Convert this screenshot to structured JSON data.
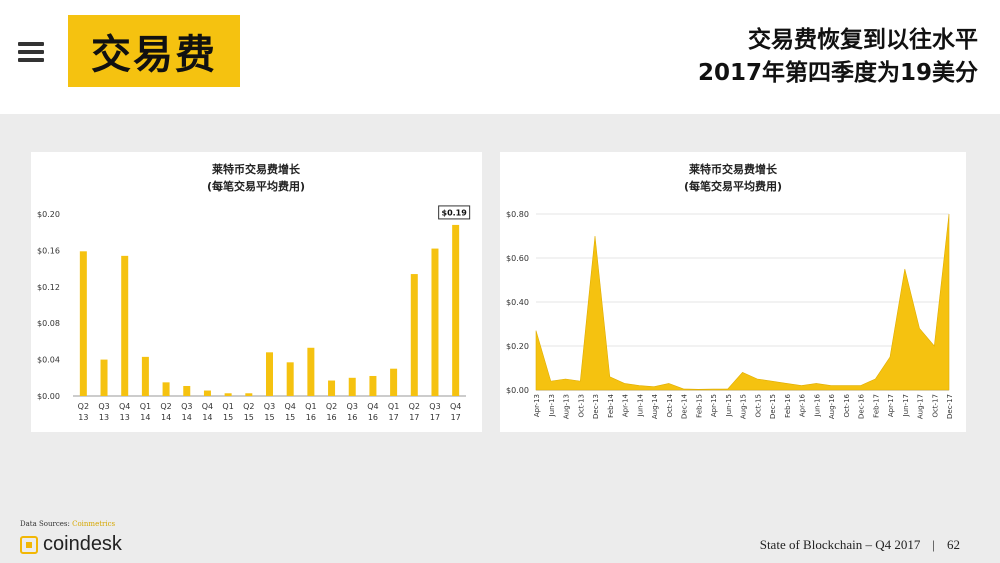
{
  "header": {
    "title": "交易费",
    "headline_line1": "交易费恢复到以往水平",
    "headline_line2": "2017年第四季度为19美分"
  },
  "footer": {
    "source_label": "Data Sources:",
    "source_value": "Coinmetrics",
    "brand": "coindesk",
    "report": "State of Blockchain – Q4 2017",
    "separator": "|",
    "page_number": "62"
  },
  "colors": {
    "accent": "#f5c210",
    "bar": "#f5c210"
  },
  "chart_data": [
    {
      "type": "bar",
      "title": "莱特币交易费增长",
      "subtitle": "(每笔交易平均费用)",
      "categories": [
        "Q2 13",
        "Q3 13",
        "Q4 13",
        "Q1 14",
        "Q2 14",
        "Q3 14",
        "Q4 14",
        "Q1 15",
        "Q2 15",
        "Q3 15",
        "Q4 15",
        "Q1 16",
        "Q2 16",
        "Q3 16",
        "Q4 16",
        "Q1 17",
        "Q2 17",
        "Q3 17",
        "Q4 17"
      ],
      "category_lines": [
        [
          "Q2",
          "13"
        ],
        [
          "Q3",
          "13"
        ],
        [
          "Q4",
          "13"
        ],
        [
          "Q1",
          "14"
        ],
        [
          "Q2",
          "14"
        ],
        [
          "Q3",
          "14"
        ],
        [
          "Q4",
          "14"
        ],
        [
          "Q1",
          "15"
        ],
        [
          "Q2",
          "15"
        ],
        [
          "Q3",
          "15"
        ],
        [
          "Q4",
          "15"
        ],
        [
          "Q1",
          "16"
        ],
        [
          "Q2",
          "16"
        ],
        [
          "Q3",
          "16"
        ],
        [
          "Q4",
          "16"
        ],
        [
          "Q1",
          "17"
        ],
        [
          "Q2",
          "17"
        ],
        [
          "Q3",
          "17"
        ],
        [
          "Q4",
          "17"
        ]
      ],
      "values": [
        0.159,
        0.04,
        0.154,
        0.043,
        0.015,
        0.011,
        0.006,
        0.003,
        0.003,
        0.048,
        0.037,
        0.053,
        0.017,
        0.02,
        0.022,
        0.03,
        0.134,
        0.162,
        0.188
      ],
      "ylim": [
        0,
        0.2
      ],
      "yticks": [
        "$0.00",
        "$0.04",
        "$0.08",
        "$0.12",
        "$0.16",
        "$0.20"
      ],
      "ytick_values": [
        0,
        0.04,
        0.08,
        0.12,
        0.16,
        0.2
      ],
      "annotation": "$0.19",
      "grid": false
    },
    {
      "type": "area",
      "title": "莱特币交易费增长",
      "subtitle": "(每笔交易平均费用)",
      "x": [
        "Apr-13",
        "Jun-13",
        "Aug-13",
        "Oct-13",
        "Dec-13",
        "Feb-14",
        "Apr-14",
        "Jun-14",
        "Aug-14",
        "Oct-14",
        "Dec-14",
        "Feb-15",
        "Apr-15",
        "Jun-15",
        "Aug-15",
        "Oct-15",
        "Dec-15",
        "Feb-16",
        "Apr-16",
        "Jun-16",
        "Aug-16",
        "Oct-16",
        "Dec-16",
        "Feb-17",
        "Apr-17",
        "Jun-17",
        "Aug-17",
        "Oct-17",
        "Dec-17"
      ],
      "values": [
        0.27,
        0.04,
        0.05,
        0.04,
        0.7,
        0.06,
        0.03,
        0.02,
        0.015,
        0.03,
        0.005,
        0.003,
        0.004,
        0.005,
        0.08,
        0.05,
        0.04,
        0.03,
        0.02,
        0.03,
        0.02,
        0.02,
        0.02,
        0.05,
        0.15,
        0.55,
        0.28,
        0.2,
        0.8
      ],
      "ylim": [
        0,
        0.8
      ],
      "yticks": [
        "$0.00",
        "$0.20",
        "$0.40",
        "$0.60",
        "$0.80"
      ],
      "ytick_values": [
        0,
        0.2,
        0.4,
        0.6,
        0.8
      ],
      "grid": true
    }
  ]
}
